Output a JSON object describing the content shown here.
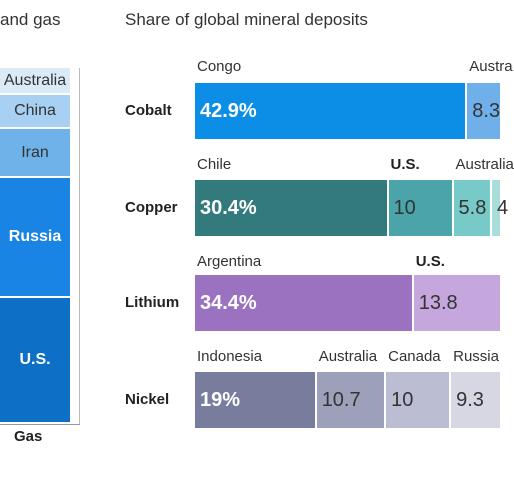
{
  "left_panel": {
    "title": "and gas",
    "column_label": "Gas",
    "segments": [
      {
        "label": "Australia",
        "color": "#dbeaf7",
        "text_color": "#333333",
        "bold": false
      },
      {
        "label": "China",
        "color": "#a8d0f2",
        "text_color": "#333333",
        "bold": false
      },
      {
        "label": "Iran",
        "color": "#6fb2ea",
        "text_color": "#333333",
        "bold": false
      },
      {
        "label": "Russia",
        "color": "#1a84e4",
        "text_color": "#ffffff",
        "bold": true
      },
      {
        "label": "U.S.",
        "color": "#0d6fc6",
        "text_color": "#ffffff",
        "bold": true
      }
    ]
  },
  "right_panel": {
    "title": "Share of global mineral deposits"
  },
  "chart_data": {
    "type": "bar",
    "title": "Share of global mineral deposits",
    "orientation": "horizontal-stacked",
    "unit": "%",
    "rows": [
      {
        "name": "Cobalt",
        "segments": [
          {
            "country": "Congo",
            "value": 42.9,
            "label": "42.9%",
            "color": "#0c8ee6",
            "light": true,
            "bold_name": false
          },
          {
            "country": "Austra",
            "value": 8.3,
            "label": "8.3",
            "color": "#6fb0ea",
            "light": false,
            "bold_name": false
          }
        ]
      },
      {
        "name": "Copper",
        "segments": [
          {
            "country": "Chile",
            "value": 30.4,
            "label": "30.4%",
            "color": "#337a7c",
            "light": true,
            "bold_name": false
          },
          {
            "country": "U.S.",
            "value": 10,
            "label": "10",
            "color": "#4aa4aa",
            "light": false,
            "bold_name": true
          },
          {
            "country": "Australia",
            "value": 5.8,
            "label": "5.8",
            "color": "#78cac8",
            "light": false,
            "bold_name": false
          },
          {
            "country": "",
            "value": 4,
            "label": "4",
            "color": "#a9ddd9",
            "light": false,
            "bold_name": false
          }
        ]
      },
      {
        "name": "Lithium",
        "segments": [
          {
            "country": "Argentina",
            "value": 34.4,
            "label": "34.4%",
            "color": "#9a72c0",
            "light": true,
            "bold_name": false
          },
          {
            "country": "U.S.",
            "value": 13.8,
            "label": "13.8",
            "color": "#c5a7de",
            "light": false,
            "bold_name": true
          }
        ]
      },
      {
        "name": "Nickel",
        "segments": [
          {
            "country": "Indonesia",
            "value": 19,
            "label": "19%",
            "color": "#787d9e",
            "light": true,
            "bold_name": false
          },
          {
            "country": "Australia",
            "value": 10.7,
            "label": "10.7",
            "color": "#9da0bb",
            "light": false,
            "bold_name": false
          },
          {
            "country": "Canada",
            "value": 10,
            "label": "10",
            "color": "#bbbdd2",
            "light": false,
            "bold_name": false
          },
          {
            "country": "Russia",
            "value": 9.3,
            "label": "9.3",
            "color": "#d6d7e3",
            "light": false,
            "bold_name": false
          }
        ]
      }
    ]
  }
}
